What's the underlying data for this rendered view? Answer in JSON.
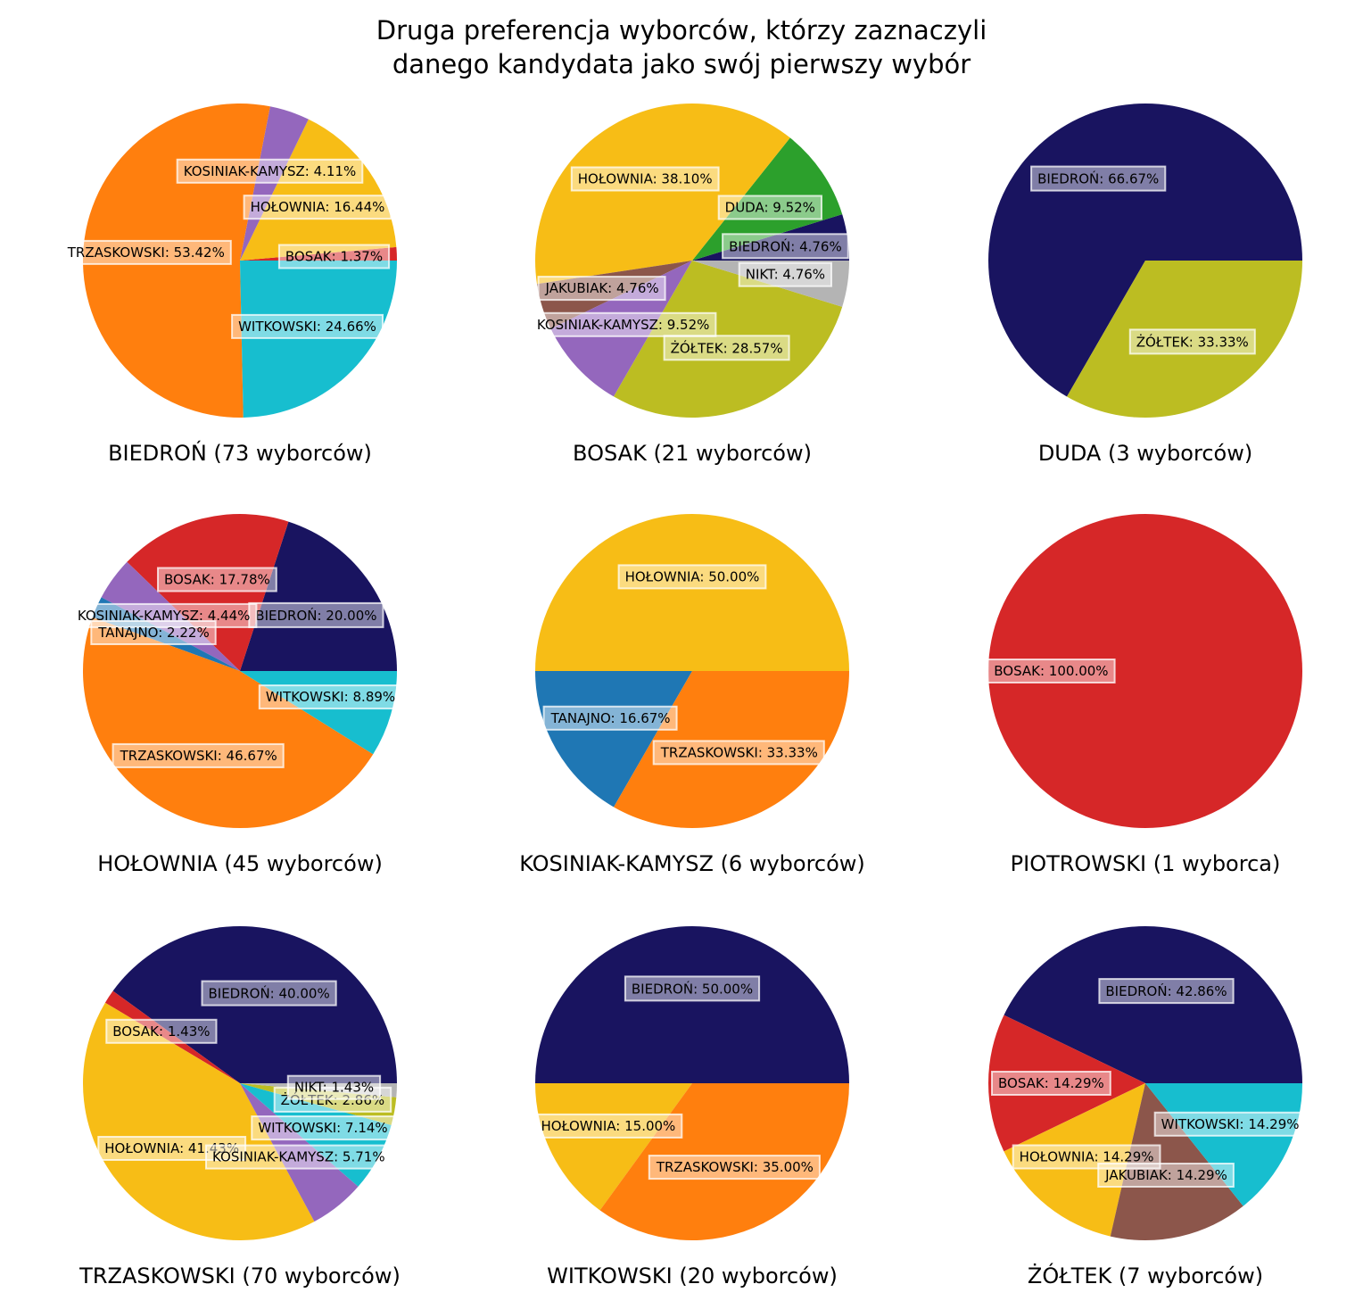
{
  "title_lines": [
    "Druga preferencja wyborców, którzy zaznaczyli",
    "danego kandydata jako swój pierwszy wybór"
  ],
  "colors": {
    "BIEDROŃ": "#191460",
    "BOSAK": "#d62728",
    "DUDA": "#2ca02c",
    "HOŁOWNIA": "#f7bd16",
    "JAKUBIAK": "#8c564b",
    "KOSINIAK-KAMYSZ": "#9467bd",
    "NIKT": "#b4b4b4",
    "TANAJNO": "#1f77b4",
    "TRZASKOWSKI": "#ff7f0e",
    "WITKOWSKI": "#17becf",
    "ŻÓŁTEK": "#bcbd22"
  },
  "chart_data": [
    {
      "type": "pie",
      "subtitle": "BIEDROŃ (73 wyborców)",
      "slices": [
        {
          "name": "BOSAK",
          "value": 1.37,
          "label": "BOSAK: 1.37%"
        },
        {
          "name": "HOŁOWNIA",
          "value": 16.44,
          "label": "HOŁOWNIA: 16.44%"
        },
        {
          "name": "KOSINIAK-KAMYSZ",
          "value": 4.11,
          "label": "KOSINIAK-KAMYSZ: 4.11%"
        },
        {
          "name": "TRZASKOWSKI",
          "value": 53.42,
          "label": "TRZASKOWSKI: 53.42%"
        },
        {
          "name": "WITKOWSKI",
          "value": 24.66,
          "label": "WITKOWSKI: 24.66%"
        }
      ]
    },
    {
      "type": "pie",
      "subtitle": "BOSAK (21 wyborców)",
      "slices": [
        {
          "name": "BIEDROŃ",
          "value": 4.76,
          "label": "BIEDROŃ: 4.76%"
        },
        {
          "name": "DUDA",
          "value": 9.52,
          "label": "DUDA: 9.52%"
        },
        {
          "name": "HOŁOWNIA",
          "value": 38.1,
          "label": "HOŁOWNIA: 38.10%"
        },
        {
          "name": "JAKUBIAK",
          "value": 4.76,
          "label": "JAKUBIAK: 4.76%"
        },
        {
          "name": "KOSINIAK-KAMYSZ",
          "value": 9.52,
          "label": "KOSINIAK-KAMYSZ: 9.52%"
        },
        {
          "name": "ŻÓŁTEK",
          "value": 28.57,
          "label": "ŻÓŁTEK: 28.57%"
        },
        {
          "name": "NIKT",
          "value": 4.76,
          "label": "NIKT: 4.76%"
        }
      ]
    },
    {
      "type": "pie",
      "subtitle": "DUDA (3 wyborców)",
      "slices": [
        {
          "name": "BIEDROŃ",
          "value": 66.67,
          "label": "BIEDROŃ: 66.67%"
        },
        {
          "name": "ŻÓŁTEK",
          "value": 33.33,
          "label": "ŻÓŁTEK: 33.33%"
        }
      ]
    },
    {
      "type": "pie",
      "subtitle": "HOŁOWNIA (45 wyborców)",
      "slices": [
        {
          "name": "BIEDROŃ",
          "value": 20.0,
          "label": "BIEDROŃ: 20.00%"
        },
        {
          "name": "BOSAK",
          "value": 17.78,
          "label": "BOSAK: 17.78%"
        },
        {
          "name": "KOSINIAK-KAMYSZ",
          "value": 4.44,
          "label": "KOSINIAK-KAMYSZ: 4.44%"
        },
        {
          "name": "TANAJNO",
          "value": 2.22,
          "label": "TANAJNO: 2.22%"
        },
        {
          "name": "TRZASKOWSKI",
          "value": 46.67,
          "label": "TRZASKOWSKI: 46.67%"
        },
        {
          "name": "WITKOWSKI",
          "value": 8.89,
          "label": "WITKOWSKI: 8.89%"
        }
      ]
    },
    {
      "type": "pie",
      "subtitle": "KOSINIAK-KAMYSZ (6 wyborców)",
      "slices": [
        {
          "name": "HOŁOWNIA",
          "value": 50.0,
          "label": "HOŁOWNIA: 50.00%"
        },
        {
          "name": "TANAJNO",
          "value": 16.67,
          "label": "TANAJNO: 16.67%"
        },
        {
          "name": "TRZASKOWSKI",
          "value": 33.33,
          "label": "TRZASKOWSKI: 33.33%"
        }
      ]
    },
    {
      "type": "pie",
      "subtitle": "PIOTROWSKI (1 wyborca)",
      "slices": [
        {
          "name": "BOSAK",
          "value": 100.0,
          "label": "BOSAK: 100.00%"
        }
      ]
    },
    {
      "type": "pie",
      "subtitle": "TRZASKOWSKI (70 wyborców)",
      "slices": [
        {
          "name": "BIEDROŃ",
          "value": 40.0,
          "label": "BIEDROŃ: 40.00%"
        },
        {
          "name": "BOSAK",
          "value": 1.43,
          "label": "BOSAK: 1.43%"
        },
        {
          "name": "HOŁOWNIA",
          "value": 41.43,
          "label": "HOŁOWNIA: 41.43%"
        },
        {
          "name": "KOSINIAK-KAMYSZ",
          "value": 5.71,
          "label": "KOSINIAK-KAMYSZ: 5.71%"
        },
        {
          "name": "WITKOWSKI",
          "value": 7.14,
          "label": "WITKOWSKI: 7.14%"
        },
        {
          "name": "ŻÓŁTEK",
          "value": 2.86,
          "label": "ŻÓŁTEK: 2.86%"
        },
        {
          "name": "NIKT",
          "value": 1.43,
          "label": "NIKT: 1.43%"
        }
      ]
    },
    {
      "type": "pie",
      "subtitle": "WITKOWSKI (20 wyborców)",
      "slices": [
        {
          "name": "BIEDROŃ",
          "value": 50.0,
          "label": "BIEDROŃ: 50.00%"
        },
        {
          "name": "HOŁOWNIA",
          "value": 15.0,
          "label": "HOŁOWNIA: 15.00%"
        },
        {
          "name": "TRZASKOWSKI",
          "value": 35.0,
          "label": "TRZASKOWSKI: 35.00%"
        }
      ]
    },
    {
      "type": "pie",
      "subtitle": "ŻÓŁTEK (7 wyborców)",
      "slices": [
        {
          "name": "BIEDROŃ",
          "value": 42.86,
          "label": "BIEDROŃ: 42.86%"
        },
        {
          "name": "BOSAK",
          "value": 14.29,
          "label": "BOSAK: 14.29%"
        },
        {
          "name": "HOŁOWNIA",
          "value": 14.29,
          "label": "HOŁOWNIA: 14.29%"
        },
        {
          "name": "JAKUBIAK",
          "value": 14.29,
          "label": "JAKUBIAK: 14.29%"
        },
        {
          "name": "WITKOWSKI",
          "value": 14.29,
          "label": "WITKOWSKI: 14.29%"
        }
      ]
    }
  ]
}
